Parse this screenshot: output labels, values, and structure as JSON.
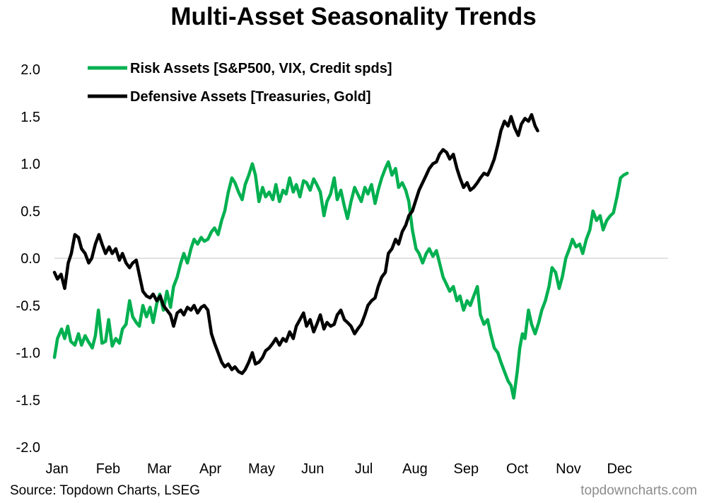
{
  "chart_data": {
    "type": "line",
    "title": "Multi-Asset Seasonality Trends",
    "xlabel": "",
    "ylabel": "",
    "x_labels": [
      "Jan",
      "Feb",
      "Mar",
      "Apr",
      "May",
      "Jun",
      "Jul",
      "Aug",
      "Sep",
      "Oct",
      "Nov",
      "Dec"
    ],
    "x_range": [
      0,
      12
    ],
    "y_ticks": [
      "2.0",
      "1.5",
      "1.0",
      "0.5",
      "0.0",
      "-0.5",
      "-1.0",
      "-1.5",
      "-2.0"
    ],
    "ylim": [
      -2.0,
      2.0
    ],
    "zero_line": true,
    "grid": false,
    "legend_position": "top-left",
    "series": [
      {
        "name": "Risk Assets [S&P500, VIX, Credit spds]",
        "color": "#00b050",
        "points": [
          [
            0.0,
            -1.05
          ],
          [
            0.06,
            -0.85
          ],
          [
            0.14,
            -0.75
          ],
          [
            0.2,
            -0.85
          ],
          [
            0.26,
            -0.72
          ],
          [
            0.32,
            -0.88
          ],
          [
            0.4,
            -0.92
          ],
          [
            0.47,
            -0.8
          ],
          [
            0.53,
            -0.92
          ],
          [
            0.6,
            -0.82
          ],
          [
            0.66,
            -0.88
          ],
          [
            0.74,
            -0.95
          ],
          [
            0.8,
            -0.82
          ],
          [
            0.86,
            -0.55
          ],
          [
            0.93,
            -0.9
          ],
          [
            1.0,
            -0.88
          ],
          [
            1.06,
            -0.65
          ],
          [
            1.13,
            -0.93
          ],
          [
            1.2,
            -0.85
          ],
          [
            1.27,
            -0.9
          ],
          [
            1.33,
            -0.75
          ],
          [
            1.4,
            -0.7
          ],
          [
            1.47,
            -0.45
          ],
          [
            1.53,
            -0.62
          ],
          [
            1.6,
            -0.68
          ],
          [
            1.66,
            -0.72
          ],
          [
            1.73,
            -0.5
          ],
          [
            1.8,
            -0.62
          ],
          [
            1.87,
            -0.52
          ],
          [
            1.93,
            -0.68
          ],
          [
            2.0,
            -0.48
          ],
          [
            2.06,
            -0.38
          ],
          [
            2.13,
            -0.55
          ],
          [
            2.2,
            -0.35
          ],
          [
            2.27,
            -0.52
          ],
          [
            2.33,
            -0.3
          ],
          [
            2.4,
            -0.2
          ],
          [
            2.47,
            -0.05
          ],
          [
            2.53,
            0.05
          ],
          [
            2.6,
            -0.05
          ],
          [
            2.67,
            0.1
          ],
          [
            2.73,
            0.2
          ],
          [
            2.8,
            0.15
          ],
          [
            2.87,
            0.22
          ],
          [
            2.93,
            0.18
          ],
          [
            3.0,
            0.2
          ],
          [
            3.07,
            0.28
          ],
          [
            3.13,
            0.32
          ],
          [
            3.2,
            0.25
          ],
          [
            3.27,
            0.4
          ],
          [
            3.33,
            0.5
          ],
          [
            3.4,
            0.7
          ],
          [
            3.47,
            0.85
          ],
          [
            3.53,
            0.8
          ],
          [
            3.6,
            0.7
          ],
          [
            3.67,
            0.62
          ],
          [
            3.73,
            0.78
          ],
          [
            3.8,
            0.88
          ],
          [
            3.87,
            1.0
          ],
          [
            3.93,
            0.88
          ],
          [
            4.0,
            0.6
          ],
          [
            4.07,
            0.75
          ],
          [
            4.13,
            0.65
          ],
          [
            4.2,
            0.7
          ],
          [
            4.27,
            0.62
          ],
          [
            4.33,
            0.78
          ],
          [
            4.4,
            0.6
          ],
          [
            4.47,
            0.72
          ],
          [
            4.53,
            0.68
          ],
          [
            4.6,
            0.85
          ],
          [
            4.67,
            0.7
          ],
          [
            4.73,
            0.78
          ],
          [
            4.8,
            0.65
          ],
          [
            4.87,
            0.82
          ],
          [
            4.93,
            0.8
          ],
          [
            5.0,
            0.72
          ],
          [
            5.07,
            0.84
          ],
          [
            5.13,
            0.78
          ],
          [
            5.2,
            0.7
          ],
          [
            5.27,
            0.45
          ],
          [
            5.33,
            0.6
          ],
          [
            5.4,
            0.68
          ],
          [
            5.47,
            0.85
          ],
          [
            5.53,
            0.62
          ],
          [
            5.6,
            0.72
          ],
          [
            5.67,
            0.55
          ],
          [
            5.73,
            0.42
          ],
          [
            5.8,
            0.6
          ],
          [
            5.87,
            0.75
          ],
          [
            5.93,
            0.68
          ],
          [
            6.0,
            0.6
          ],
          [
            6.07,
            0.75
          ],
          [
            6.13,
            0.68
          ],
          [
            6.2,
            0.78
          ],
          [
            6.27,
            0.58
          ],
          [
            6.33,
            0.72
          ],
          [
            6.4,
            0.85
          ],
          [
            6.47,
            0.95
          ],
          [
            6.53,
            1.02
          ],
          [
            6.6,
            0.88
          ],
          [
            6.67,
            0.95
          ],
          [
            6.73,
            0.75
          ],
          [
            6.8,
            0.8
          ],
          [
            6.87,
            0.72
          ],
          [
            6.93,
            0.6
          ],
          [
            7.0,
            0.3
          ],
          [
            7.07,
            0.1
          ],
          [
            7.13,
            0.05
          ],
          [
            7.2,
            -0.05
          ],
          [
            7.27,
            0.05
          ],
          [
            7.33,
            0.1
          ],
          [
            7.4,
            0.02
          ],
          [
            7.47,
            0.08
          ],
          [
            7.53,
            -0.05
          ],
          [
            7.6,
            -0.2
          ],
          [
            7.67,
            -0.28
          ],
          [
            7.73,
            -0.35
          ],
          [
            7.8,
            -0.3
          ],
          [
            7.87,
            -0.45
          ],
          [
            7.93,
            -0.4
          ],
          [
            8.0,
            -0.55
          ],
          [
            8.07,
            -0.45
          ],
          [
            8.13,
            -0.5
          ],
          [
            8.2,
            -0.4
          ],
          [
            8.27,
            -0.3
          ],
          [
            8.33,
            -0.6
          ],
          [
            8.4,
            -0.7
          ],
          [
            8.47,
            -0.65
          ],
          [
            8.53,
            -0.8
          ],
          [
            8.6,
            -0.95
          ],
          [
            8.67,
            -1.0
          ],
          [
            8.73,
            -1.1
          ],
          [
            8.8,
            -1.2
          ],
          [
            8.87,
            -1.3
          ],
          [
            8.93,
            -1.35
          ],
          [
            8.98,
            -1.48
          ],
          [
            9.05,
            -1.2
          ],
          [
            9.1,
            -0.95
          ],
          [
            9.15,
            -0.8
          ],
          [
            9.2,
            -0.85
          ],
          [
            9.27,
            -0.55
          ],
          [
            9.33,
            -0.7
          ],
          [
            9.4,
            -0.8
          ],
          [
            9.47,
            -0.68
          ],
          [
            9.53,
            -0.55
          ],
          [
            9.6,
            -0.45
          ],
          [
            9.67,
            -0.3
          ],
          [
            9.73,
            -0.1
          ],
          [
            9.8,
            -0.15
          ],
          [
            9.87,
            -0.32
          ],
          [
            9.93,
            -0.2
          ],
          [
            10.0,
            0.0
          ],
          [
            10.07,
            0.1
          ],
          [
            10.13,
            0.2
          ],
          [
            10.2,
            0.12
          ],
          [
            10.27,
            0.15
          ],
          [
            10.33,
            0.05
          ],
          [
            10.4,
            0.2
          ],
          [
            10.47,
            0.3
          ],
          [
            10.53,
            0.5
          ],
          [
            10.6,
            0.4
          ],
          [
            10.67,
            0.45
          ],
          [
            10.73,
            0.3
          ],
          [
            10.8,
            0.4
          ],
          [
            10.87,
            0.45
          ],
          [
            10.93,
            0.48
          ],
          [
            11.0,
            0.65
          ],
          [
            11.07,
            0.85
          ],
          [
            11.13,
            0.88
          ],
          [
            11.2,
            0.9
          ]
        ]
      },
      {
        "name": "Defensive Assets [Treasuries, Gold]",
        "color": "#000000",
        "points": [
          [
            0.0,
            -0.15
          ],
          [
            0.06,
            -0.22
          ],
          [
            0.13,
            -0.17
          ],
          [
            0.2,
            -0.32
          ],
          [
            0.27,
            -0.05
          ],
          [
            0.33,
            0.05
          ],
          [
            0.4,
            0.25
          ],
          [
            0.47,
            0.22
          ],
          [
            0.53,
            0.1
          ],
          [
            0.6,
            0.05
          ],
          [
            0.67,
            -0.05
          ],
          [
            0.73,
            0.0
          ],
          [
            0.8,
            0.15
          ],
          [
            0.87,
            0.25
          ],
          [
            0.93,
            0.15
          ],
          [
            1.0,
            0.05
          ],
          [
            1.07,
            0.12
          ],
          [
            1.13,
            0.05
          ],
          [
            1.2,
            0.1
          ],
          [
            1.27,
            -0.02
          ],
          [
            1.33,
            0.05
          ],
          [
            1.4,
            -0.05
          ],
          [
            1.47,
            -0.1
          ],
          [
            1.53,
            -0.05
          ],
          [
            1.6,
            -0.02
          ],
          [
            1.67,
            -0.2
          ],
          [
            1.73,
            -0.35
          ],
          [
            1.8,
            -0.4
          ],
          [
            1.87,
            -0.42
          ],
          [
            1.93,
            -0.38
          ],
          [
            2.0,
            -0.45
          ],
          [
            2.07,
            -0.4
          ],
          [
            2.13,
            -0.5
          ],
          [
            2.2,
            -0.55
          ],
          [
            2.27,
            -0.6
          ],
          [
            2.33,
            -0.72
          ],
          [
            2.4,
            -0.58
          ],
          [
            2.47,
            -0.55
          ],
          [
            2.53,
            -0.6
          ],
          [
            2.6,
            -0.52
          ],
          [
            2.67,
            -0.55
          ],
          [
            2.73,
            -0.5
          ],
          [
            2.8,
            -0.58
          ],
          [
            2.87,
            -0.52
          ],
          [
            2.93,
            -0.5
          ],
          [
            3.0,
            -0.55
          ],
          [
            3.07,
            -0.8
          ],
          [
            3.13,
            -0.9
          ],
          [
            3.2,
            -1.0
          ],
          [
            3.27,
            -1.1
          ],
          [
            3.33,
            -1.15
          ],
          [
            3.4,
            -1.12
          ],
          [
            3.47,
            -1.18
          ],
          [
            3.53,
            -1.15
          ],
          [
            3.6,
            -1.2
          ],
          [
            3.67,
            -1.22
          ],
          [
            3.73,
            -1.18
          ],
          [
            3.8,
            -1.1
          ],
          [
            3.87,
            -1.0
          ],
          [
            3.93,
            -1.12
          ],
          [
            4.0,
            -1.1
          ],
          [
            4.07,
            -1.05
          ],
          [
            4.13,
            -0.98
          ],
          [
            4.2,
            -0.95
          ],
          [
            4.27,
            -0.9
          ],
          [
            4.33,
            -0.85
          ],
          [
            4.4,
            -0.92
          ],
          [
            4.47,
            -0.85
          ],
          [
            4.53,
            -0.88
          ],
          [
            4.6,
            -0.78
          ],
          [
            4.67,
            -0.85
          ],
          [
            4.73,
            -0.72
          ],
          [
            4.8,
            -0.65
          ],
          [
            4.87,
            -0.58
          ],
          [
            4.93,
            -0.72
          ],
          [
            5.0,
            -0.65
          ],
          [
            5.07,
            -0.78
          ],
          [
            5.13,
            -0.7
          ],
          [
            5.2,
            -0.6
          ],
          [
            5.27,
            -0.75
          ],
          [
            5.33,
            -0.68
          ],
          [
            5.4,
            -0.72
          ],
          [
            5.47,
            -0.7
          ],
          [
            5.53,
            -0.6
          ],
          [
            5.6,
            -0.55
          ],
          [
            5.67,
            -0.65
          ],
          [
            5.73,
            -0.68
          ],
          [
            5.8,
            -0.72
          ],
          [
            5.87,
            -0.8
          ],
          [
            5.93,
            -0.75
          ],
          [
            6.0,
            -0.7
          ],
          [
            6.07,
            -0.6
          ],
          [
            6.13,
            -0.5
          ],
          [
            6.2,
            -0.45
          ],
          [
            6.27,
            -0.42
          ],
          [
            6.33,
            -0.3
          ],
          [
            6.4,
            -0.2
          ],
          [
            6.47,
            -0.15
          ],
          [
            6.53,
            0.05
          ],
          [
            6.6,
            0.1
          ],
          [
            6.67,
            0.2
          ],
          [
            6.73,
            0.15
          ],
          [
            6.8,
            0.28
          ],
          [
            6.87,
            0.35
          ],
          [
            6.93,
            0.45
          ],
          [
            7.0,
            0.5
          ],
          [
            7.07,
            0.62
          ],
          [
            7.13,
            0.72
          ],
          [
            7.2,
            0.8
          ],
          [
            7.27,
            0.88
          ],
          [
            7.33,
            0.95
          ],
          [
            7.4,
            1.0
          ],
          [
            7.47,
            1.02
          ],
          [
            7.53,
            1.1
          ],
          [
            7.6,
            1.15
          ],
          [
            7.67,
            1.12
          ],
          [
            7.73,
            1.05
          ],
          [
            7.8,
            1.1
          ],
          [
            7.87,
            0.95
          ],
          [
            7.93,
            0.85
          ],
          [
            8.0,
            0.75
          ],
          [
            8.07,
            0.8
          ],
          [
            8.13,
            0.72
          ],
          [
            8.2,
            0.75
          ],
          [
            8.27,
            0.8
          ],
          [
            8.33,
            0.85
          ],
          [
            8.4,
            0.9
          ],
          [
            8.47,
            0.88
          ],
          [
            8.53,
            0.95
          ],
          [
            8.6,
            1.05
          ],
          [
            8.67,
            1.2
          ],
          [
            8.73,
            1.35
          ],
          [
            8.8,
            1.45
          ],
          [
            8.87,
            1.4
          ],
          [
            8.93,
            1.5
          ],
          [
            9.0,
            1.38
          ],
          [
            9.07,
            1.3
          ],
          [
            9.13,
            1.42
          ],
          [
            9.2,
            1.48
          ],
          [
            9.27,
            1.45
          ],
          [
            9.33,
            1.52
          ],
          [
            9.4,
            1.4
          ],
          [
            9.45,
            1.35
          ]
        ]
      }
    ]
  },
  "footer": {
    "source": "Source: Topdown Charts, LSEG",
    "watermark": "topdowncharts.com"
  }
}
